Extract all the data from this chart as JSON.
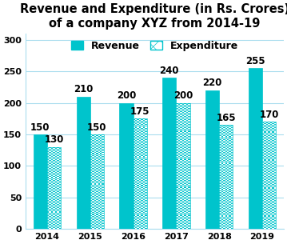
{
  "title": "Revenue and Expenditure (in Rs. Crores)\nof a company XYZ from 2014-19",
  "years": [
    "2014",
    "2015",
    "2016",
    "2017",
    "2018",
    "2019"
  ],
  "revenue": [
    150,
    210,
    200,
    240,
    220,
    255
  ],
  "expenditure": [
    130,
    150,
    175,
    200,
    165,
    170
  ],
  "bar_color_revenue": "#00C4CC",
  "bar_color_expenditure_face": "#ffffff",
  "bar_color_expenditure_hatch": "#00C4CC",
  "bar_width": 0.32,
  "ylim": [
    0,
    310
  ],
  "yticks": [
    0,
    50,
    100,
    150,
    200,
    250,
    300
  ],
  "xlabel": "",
  "ylabel": "",
  "title_fontsize": 10.5,
  "label_fontsize": 8.5,
  "tick_fontsize": 8,
  "legend_fontsize": 9,
  "background_color": "#ffffff",
  "grid_color": "#aaddee",
  "legend_revenue": "Revenue",
  "legend_expenditure": "Expenditure"
}
